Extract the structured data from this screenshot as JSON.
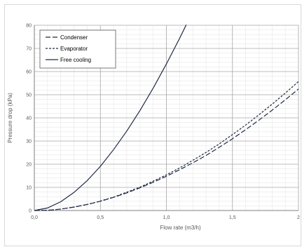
{
  "chart_data": {
    "type": "line",
    "title": "",
    "xlabel": "Flow rate (m3/h)",
    "ylabel": "Pressure drop (kPa)",
    "xlim": [
      0,
      2.0
    ],
    "ylim": [
      0,
      80
    ],
    "x_ticks": [
      "0,0",
      "0,5",
      "1,0",
      "1,5",
      "2"
    ],
    "y_ticks": [
      "0",
      "10",
      "20",
      "30",
      "40",
      "50",
      "60",
      "70",
      "80"
    ],
    "grid": true,
    "legend_position": "top-left",
    "series": [
      {
        "name": "Condenser",
        "dash": "long-dash",
        "color": "#1f2a44",
        "points": [
          [
            0,
            0
          ],
          [
            0.1,
            0.1
          ],
          [
            0.2,
            0.6
          ],
          [
            0.3,
            1.5
          ],
          [
            0.4,
            2.6
          ],
          [
            0.5,
            4.0
          ],
          [
            0.6,
            5.7
          ],
          [
            0.7,
            7.6
          ],
          [
            0.8,
            9.8
          ],
          [
            0.9,
            12.2
          ],
          [
            1.0,
            14.8
          ],
          [
            1.1,
            17.6
          ],
          [
            1.2,
            20.6
          ],
          [
            1.3,
            23.8
          ],
          [
            1.4,
            27.3
          ],
          [
            1.5,
            31.0
          ],
          [
            1.6,
            34.9
          ],
          [
            1.7,
            39.0
          ],
          [
            1.8,
            43.3
          ],
          [
            1.9,
            47.8
          ],
          [
            2.0,
            52.5
          ]
        ]
      },
      {
        "name": "Evaporator",
        "dash": "short-dash",
        "color": "#1f2a44",
        "points": [
          [
            0,
            0
          ],
          [
            0.1,
            0.1
          ],
          [
            0.2,
            0.6
          ],
          [
            0.3,
            1.5
          ],
          [
            0.4,
            2.6
          ],
          [
            0.5,
            4.1
          ],
          [
            0.6,
            5.8
          ],
          [
            0.7,
            7.9
          ],
          [
            0.8,
            10.1
          ],
          [
            0.9,
            12.7
          ],
          [
            1.0,
            15.4
          ],
          [
            1.1,
            18.4
          ],
          [
            1.2,
            21.7
          ],
          [
            1.3,
            25.1
          ],
          [
            1.4,
            28.8
          ],
          [
            1.5,
            32.8
          ],
          [
            1.6,
            36.9
          ],
          [
            1.7,
            41.3
          ],
          [
            1.8,
            45.9
          ],
          [
            1.9,
            50.7
          ],
          [
            2.0,
            55.7
          ]
        ]
      },
      {
        "name": "Free cooling",
        "dash": "solid",
        "color": "#1f2a44",
        "points": [
          [
            0,
            0
          ],
          [
            0.1,
            1.1
          ],
          [
            0.2,
            3.8
          ],
          [
            0.3,
            7.8
          ],
          [
            0.4,
            12.9
          ],
          [
            0.5,
            19.1
          ],
          [
            0.6,
            26.3
          ],
          [
            0.7,
            34.3
          ],
          [
            0.8,
            43.2
          ],
          [
            0.9,
            52.9
          ],
          [
            1.0,
            63.3
          ],
          [
            1.1,
            74.4
          ],
          [
            1.15,
            80.2
          ]
        ]
      }
    ]
  }
}
